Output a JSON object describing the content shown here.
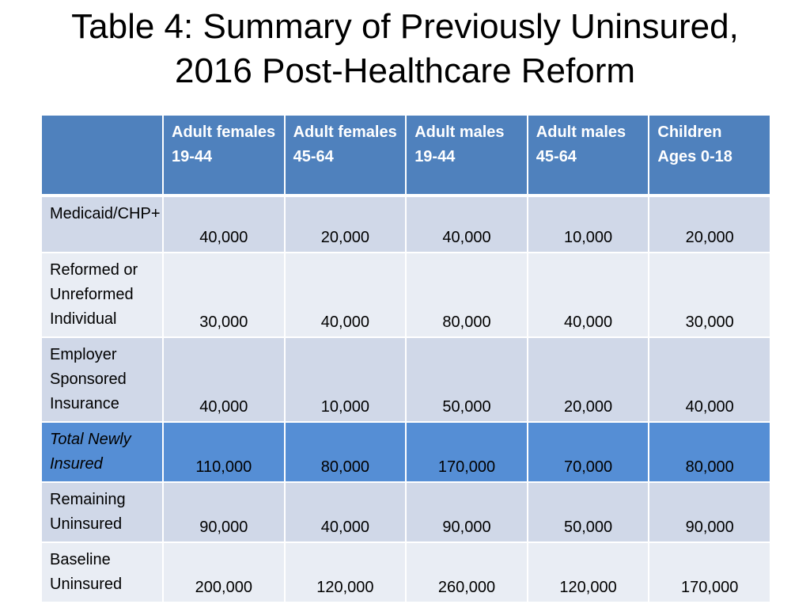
{
  "title": {
    "line1": "Table 4: Summary of Previously Uninsured,",
    "line2": "2016 Post-Healthcare Reform"
  },
  "table": {
    "corner": "",
    "columns": [
      "Adult females 19-44",
      "Adult females 45-64",
      "Adult males 19-44",
      "Adult males 45-64",
      "Children Ages 0-18"
    ],
    "rows": [
      {
        "label": "Medicaid/CHP+",
        "values": [
          "40,000",
          "20,000",
          "40,000",
          "10,000",
          "20,000"
        ]
      },
      {
        "label": "Reformed or Unreformed Individual",
        "values": [
          "30,000",
          "40,000",
          "80,000",
          "40,000",
          "30,000"
        ]
      },
      {
        "label": "Employer Sponsored Insurance",
        "values": [
          "40,000",
          "10,000",
          "50,000",
          "20,000",
          "40,000"
        ]
      },
      {
        "label": "Total Newly Insured",
        "values": [
          "110,000",
          "80,000",
          "170,000",
          "70,000",
          "80,000"
        ]
      },
      {
        "label": "Remaining Uninsured",
        "values": [
          "90,000",
          "40,000",
          "90,000",
          "50,000",
          "90,000"
        ]
      },
      {
        "label": "Baseline Uninsured",
        "values": [
          "200,000",
          "120,000",
          "260,000",
          "120,000",
          "170,000"
        ]
      }
    ]
  },
  "colors": {
    "header_bg": "#4f81bd",
    "row_dark": "#d0d8e8",
    "row_light": "#e9edf4",
    "total_row": "#558ed5"
  }
}
